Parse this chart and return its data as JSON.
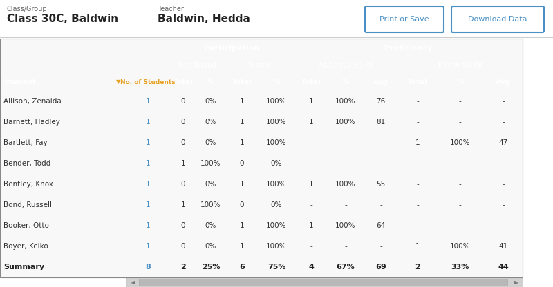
{
  "class_group_label": "Class/Group",
  "class_group_value": "Class 30C, Baldwin",
  "teacher_label": "Teacher",
  "teacher_value": "Baldwin, Hedda",
  "btn1": "Print or Save",
  "btn2": "Download Data",
  "header_bg": "#3a3a3a",
  "header_text": "#ffffff",
  "subheader_bg": "#555555",
  "row_bg_odd": "#ffffff",
  "row_bg_even": "#daeef5",
  "summary_bg": "#fffff0",
  "no_students_color": "#e8a020",
  "link_color": "#4a90c4",
  "students": [
    [
      "Allison, Zenaida",
      "1",
      "0",
      "0%",
      "1",
      "100%",
      "1",
      "100%",
      "76",
      "-",
      "-",
      "-"
    ],
    [
      "Barnett, Hadley",
      "1",
      "0",
      "0%",
      "1",
      "100%",
      "1",
      "100%",
      "81",
      "-",
      "-",
      "-"
    ],
    [
      "Bartlett, Fay",
      "1",
      "0",
      "0%",
      "1",
      "100%",
      "-",
      "-",
      "-",
      "1",
      "100%",
      "47"
    ],
    [
      "Bender, Todd",
      "1",
      "1",
      "100%",
      "0",
      "0%",
      "-",
      "-",
      "-",
      "-",
      "-",
      "-"
    ],
    [
      "Bentley, Knox",
      "1",
      "0",
      "0%",
      "1",
      "100%",
      "1",
      "100%",
      "55",
      "-",
      "-",
      "-"
    ],
    [
      "Bond, Russell",
      "1",
      "1",
      "100%",
      "0",
      "0%",
      "-",
      "-",
      "-",
      "-",
      "-",
      "-"
    ],
    [
      "Booker, Otto",
      "1",
      "0",
      "0%",
      "1",
      "100%",
      "1",
      "100%",
      "64",
      "-",
      "-",
      "-"
    ],
    [
      "Boyer, Keiko",
      "1",
      "0",
      "0%",
      "1",
      "100%",
      "-",
      "-",
      "-",
      "1",
      "100%",
      "41"
    ]
  ],
  "summary": [
    "Summary",
    "8",
    "2",
    "25%",
    "6",
    "75%",
    "4",
    "67%",
    "69",
    "2",
    "33%",
    "44"
  ],
  "fig_bg": "#ffffff"
}
